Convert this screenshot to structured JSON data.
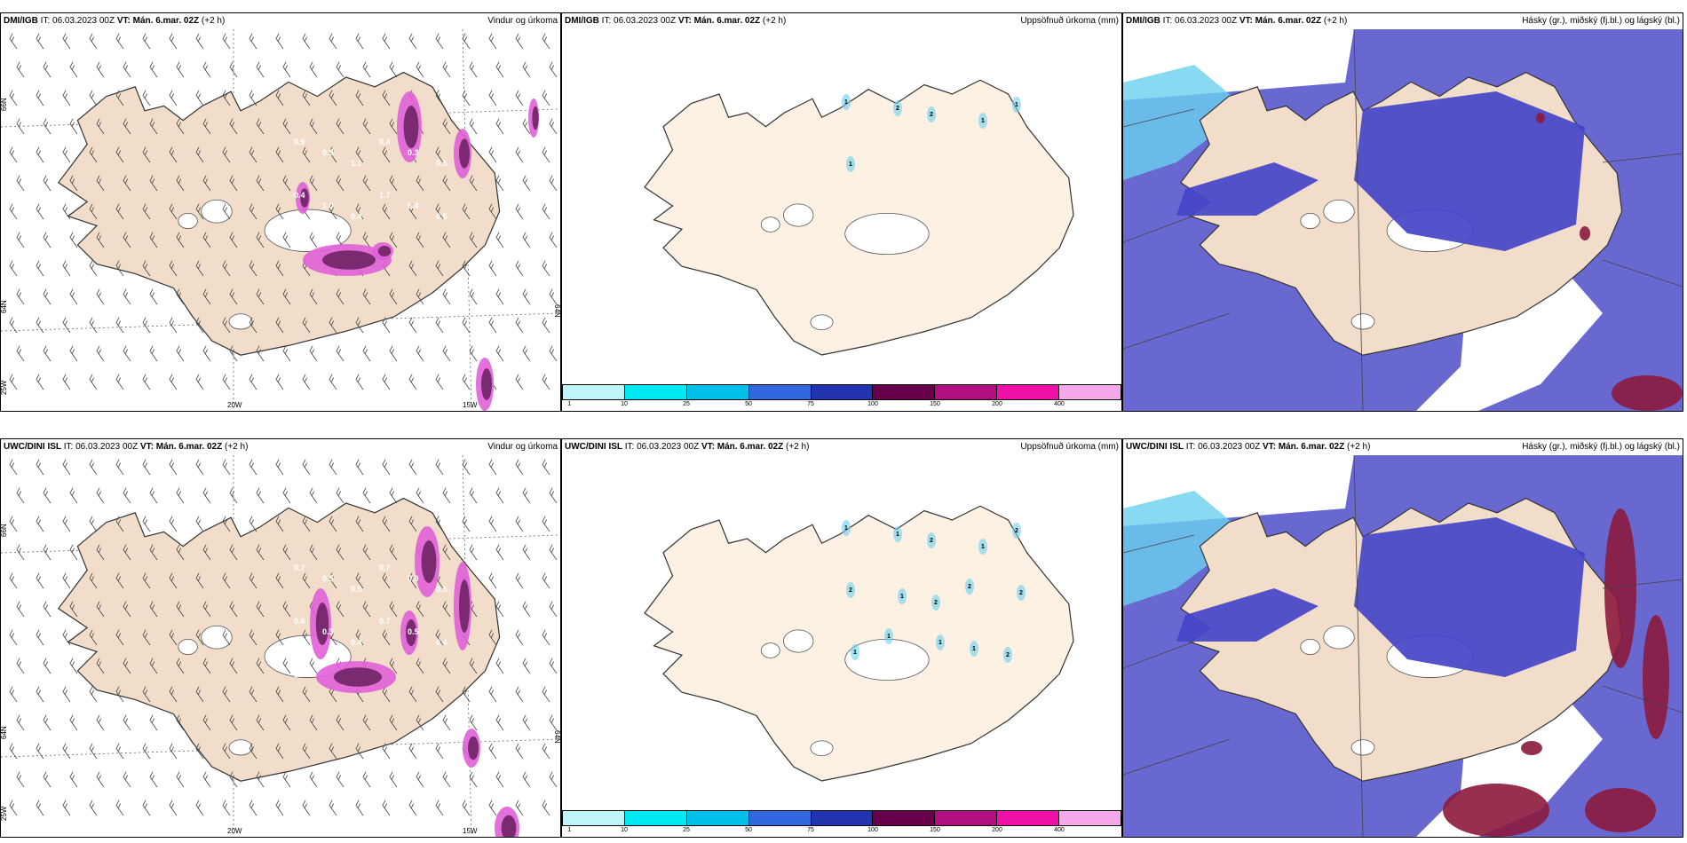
{
  "rows": [
    {
      "source": "DMI/IGB",
      "it": "IT: 06.03.2023 00Z",
      "vt": "VT: Mán. 6.mar. 02Z",
      "lead": "(+2 h)",
      "panel_titles": [
        "Vindur og úrkoma",
        "Uppsöfnuð úrkoma (mm)",
        "Hásky (gr.), miðský (fj.bl.) og lágský (bl.)"
      ],
      "wind_values": [
        "0.9",
        "0.9",
        "1.1",
        "0.4",
        "0.3",
        "0.5",
        "0.4",
        "1.0",
        "0.4",
        "1.7",
        "0.4",
        "0.5"
      ],
      "accum_values": [
        "1",
        "2",
        "2",
        "1",
        "1",
        "1"
      ]
    },
    {
      "source": "UWC/DINI ISL",
      "it": "IT: 06.03.2023 00Z",
      "vt": "VT: Mán. 6.mar. 02Z",
      "lead": "(+2 h)",
      "panel_titles": [
        "Vindur og úrkoma",
        "Uppsöfnuð úrkoma (mm)",
        "Hásky (gr.), miðský (fj.bl.) og lágský (bl.)"
      ],
      "wind_values": [
        "0.7",
        "0.5",
        "0.5",
        "0.7",
        "0.9",
        "0.5",
        "0.6",
        "0.3",
        "0.4",
        "0.7",
        "0.5",
        "0.4",
        "1.0"
      ],
      "accum_values": [
        "1",
        "1",
        "2",
        "1",
        "2",
        "2",
        "1",
        "2",
        "2",
        "2",
        "1",
        "1",
        "1",
        "1",
        "2"
      ]
    }
  ],
  "axes": {
    "lat_labels": [
      "66N",
      "64N"
    ],
    "lat_right": "64N",
    "lon_labels": [
      "20W",
      "15W"
    ],
    "corner": "25W"
  },
  "colorbar": {
    "ticks": [
      "1",
      "10",
      "25",
      "50",
      "75",
      "100",
      "150",
      "200",
      "400"
    ],
    "colors": [
      "#bff5f8",
      "#00e8f0",
      "#00bfe8",
      "#3366e0",
      "#2233b0",
      "#66004d",
      "#b0107f",
      "#ee10a8",
      "#f5a8ea"
    ]
  },
  "colors": {
    "land": "#f1ddc9",
    "land_accum": "#fdf1e4",
    "precip_dark": "#7a2a6e",
    "precip_light": "#e060d8",
    "cloud_low": "#4444c8",
    "cloud_mid": "#6868d0",
    "cloud_light": "#6cd0f0",
    "cloud_high": "#8c1a3c"
  }
}
